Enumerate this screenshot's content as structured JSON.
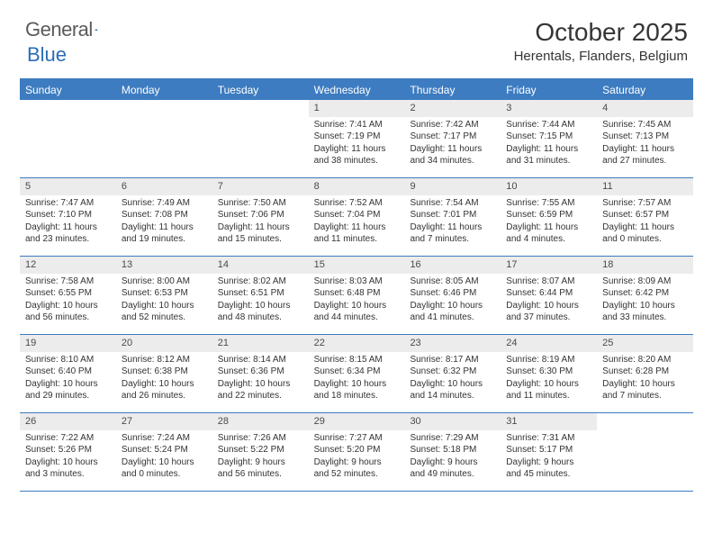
{
  "logo": {
    "word1": "General",
    "word2": "Blue"
  },
  "title": "October 2025",
  "location": "Herentals, Flanders, Belgium",
  "colors": {
    "accent": "#3d7cc0",
    "header_bg": "#3d7cc0",
    "date_bg": "#ececec",
    "text": "#333333",
    "bg": "#ffffff"
  },
  "day_headers": [
    "Sunday",
    "Monday",
    "Tuesday",
    "Wednesday",
    "Thursday",
    "Friday",
    "Saturday"
  ],
  "weeks": [
    [
      null,
      null,
      null,
      {
        "d": "1",
        "sr": "Sunrise: 7:41 AM",
        "ss": "Sunset: 7:19 PM",
        "dl1": "Daylight: 11 hours",
        "dl2": "and 38 minutes."
      },
      {
        "d": "2",
        "sr": "Sunrise: 7:42 AM",
        "ss": "Sunset: 7:17 PM",
        "dl1": "Daylight: 11 hours",
        "dl2": "and 34 minutes."
      },
      {
        "d": "3",
        "sr": "Sunrise: 7:44 AM",
        "ss": "Sunset: 7:15 PM",
        "dl1": "Daylight: 11 hours",
        "dl2": "and 31 minutes."
      },
      {
        "d": "4",
        "sr": "Sunrise: 7:45 AM",
        "ss": "Sunset: 7:13 PM",
        "dl1": "Daylight: 11 hours",
        "dl2": "and 27 minutes."
      }
    ],
    [
      {
        "d": "5",
        "sr": "Sunrise: 7:47 AM",
        "ss": "Sunset: 7:10 PM",
        "dl1": "Daylight: 11 hours",
        "dl2": "and 23 minutes."
      },
      {
        "d": "6",
        "sr": "Sunrise: 7:49 AM",
        "ss": "Sunset: 7:08 PM",
        "dl1": "Daylight: 11 hours",
        "dl2": "and 19 minutes."
      },
      {
        "d": "7",
        "sr": "Sunrise: 7:50 AM",
        "ss": "Sunset: 7:06 PM",
        "dl1": "Daylight: 11 hours",
        "dl2": "and 15 minutes."
      },
      {
        "d": "8",
        "sr": "Sunrise: 7:52 AM",
        "ss": "Sunset: 7:04 PM",
        "dl1": "Daylight: 11 hours",
        "dl2": "and 11 minutes."
      },
      {
        "d": "9",
        "sr": "Sunrise: 7:54 AM",
        "ss": "Sunset: 7:01 PM",
        "dl1": "Daylight: 11 hours",
        "dl2": "and 7 minutes."
      },
      {
        "d": "10",
        "sr": "Sunrise: 7:55 AM",
        "ss": "Sunset: 6:59 PM",
        "dl1": "Daylight: 11 hours",
        "dl2": "and 4 minutes."
      },
      {
        "d": "11",
        "sr": "Sunrise: 7:57 AM",
        "ss": "Sunset: 6:57 PM",
        "dl1": "Daylight: 11 hours",
        "dl2": "and 0 minutes."
      }
    ],
    [
      {
        "d": "12",
        "sr": "Sunrise: 7:58 AM",
        "ss": "Sunset: 6:55 PM",
        "dl1": "Daylight: 10 hours",
        "dl2": "and 56 minutes."
      },
      {
        "d": "13",
        "sr": "Sunrise: 8:00 AM",
        "ss": "Sunset: 6:53 PM",
        "dl1": "Daylight: 10 hours",
        "dl2": "and 52 minutes."
      },
      {
        "d": "14",
        "sr": "Sunrise: 8:02 AM",
        "ss": "Sunset: 6:51 PM",
        "dl1": "Daylight: 10 hours",
        "dl2": "and 48 minutes."
      },
      {
        "d": "15",
        "sr": "Sunrise: 8:03 AM",
        "ss": "Sunset: 6:48 PM",
        "dl1": "Daylight: 10 hours",
        "dl2": "and 44 minutes."
      },
      {
        "d": "16",
        "sr": "Sunrise: 8:05 AM",
        "ss": "Sunset: 6:46 PM",
        "dl1": "Daylight: 10 hours",
        "dl2": "and 41 minutes."
      },
      {
        "d": "17",
        "sr": "Sunrise: 8:07 AM",
        "ss": "Sunset: 6:44 PM",
        "dl1": "Daylight: 10 hours",
        "dl2": "and 37 minutes."
      },
      {
        "d": "18",
        "sr": "Sunrise: 8:09 AM",
        "ss": "Sunset: 6:42 PM",
        "dl1": "Daylight: 10 hours",
        "dl2": "and 33 minutes."
      }
    ],
    [
      {
        "d": "19",
        "sr": "Sunrise: 8:10 AM",
        "ss": "Sunset: 6:40 PM",
        "dl1": "Daylight: 10 hours",
        "dl2": "and 29 minutes."
      },
      {
        "d": "20",
        "sr": "Sunrise: 8:12 AM",
        "ss": "Sunset: 6:38 PM",
        "dl1": "Daylight: 10 hours",
        "dl2": "and 26 minutes."
      },
      {
        "d": "21",
        "sr": "Sunrise: 8:14 AM",
        "ss": "Sunset: 6:36 PM",
        "dl1": "Daylight: 10 hours",
        "dl2": "and 22 minutes."
      },
      {
        "d": "22",
        "sr": "Sunrise: 8:15 AM",
        "ss": "Sunset: 6:34 PM",
        "dl1": "Daylight: 10 hours",
        "dl2": "and 18 minutes."
      },
      {
        "d": "23",
        "sr": "Sunrise: 8:17 AM",
        "ss": "Sunset: 6:32 PM",
        "dl1": "Daylight: 10 hours",
        "dl2": "and 14 minutes."
      },
      {
        "d": "24",
        "sr": "Sunrise: 8:19 AM",
        "ss": "Sunset: 6:30 PM",
        "dl1": "Daylight: 10 hours",
        "dl2": "and 11 minutes."
      },
      {
        "d": "25",
        "sr": "Sunrise: 8:20 AM",
        "ss": "Sunset: 6:28 PM",
        "dl1": "Daylight: 10 hours",
        "dl2": "and 7 minutes."
      }
    ],
    [
      {
        "d": "26",
        "sr": "Sunrise: 7:22 AM",
        "ss": "Sunset: 5:26 PM",
        "dl1": "Daylight: 10 hours",
        "dl2": "and 3 minutes."
      },
      {
        "d": "27",
        "sr": "Sunrise: 7:24 AM",
        "ss": "Sunset: 5:24 PM",
        "dl1": "Daylight: 10 hours",
        "dl2": "and 0 minutes."
      },
      {
        "d": "28",
        "sr": "Sunrise: 7:26 AM",
        "ss": "Sunset: 5:22 PM",
        "dl1": "Daylight: 9 hours",
        "dl2": "and 56 minutes."
      },
      {
        "d": "29",
        "sr": "Sunrise: 7:27 AM",
        "ss": "Sunset: 5:20 PM",
        "dl1": "Daylight: 9 hours",
        "dl2": "and 52 minutes."
      },
      {
        "d": "30",
        "sr": "Sunrise: 7:29 AM",
        "ss": "Sunset: 5:18 PM",
        "dl1": "Daylight: 9 hours",
        "dl2": "and 49 minutes."
      },
      {
        "d": "31",
        "sr": "Sunrise: 7:31 AM",
        "ss": "Sunset: 5:17 PM",
        "dl1": "Daylight: 9 hours",
        "dl2": "and 45 minutes."
      },
      null
    ]
  ]
}
